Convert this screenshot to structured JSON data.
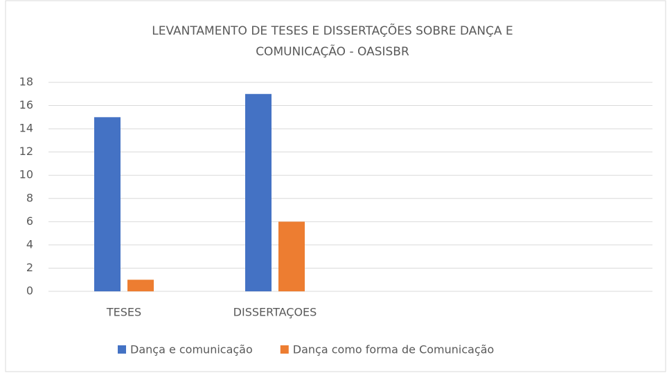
{
  "chart_data": {
    "type": "bar",
    "title": "LEVANTAMENTO DE TESES E DISSERTAÇÕES SOBRE DANÇA E COMUNICAÇÃO - OASISBR",
    "categories": [
      "TESES",
      "DISSERTAÇOES",
      null,
      null
    ],
    "series": [
      {
        "name": "Dança e comunicação",
        "color": "#4472c4",
        "values": [
          15,
          17,
          null,
          null
        ]
      },
      {
        "name": "Dança como forma de Comunicação",
        "color": "#ed7d31",
        "values": [
          1,
          6,
          null,
          null
        ]
      }
    ],
    "ylim": [
      0,
      18
    ],
    "yticks": [
      0,
      2,
      4,
      6,
      8,
      10,
      12,
      14,
      16,
      18
    ],
    "grid": true,
    "legend": "bottom"
  }
}
